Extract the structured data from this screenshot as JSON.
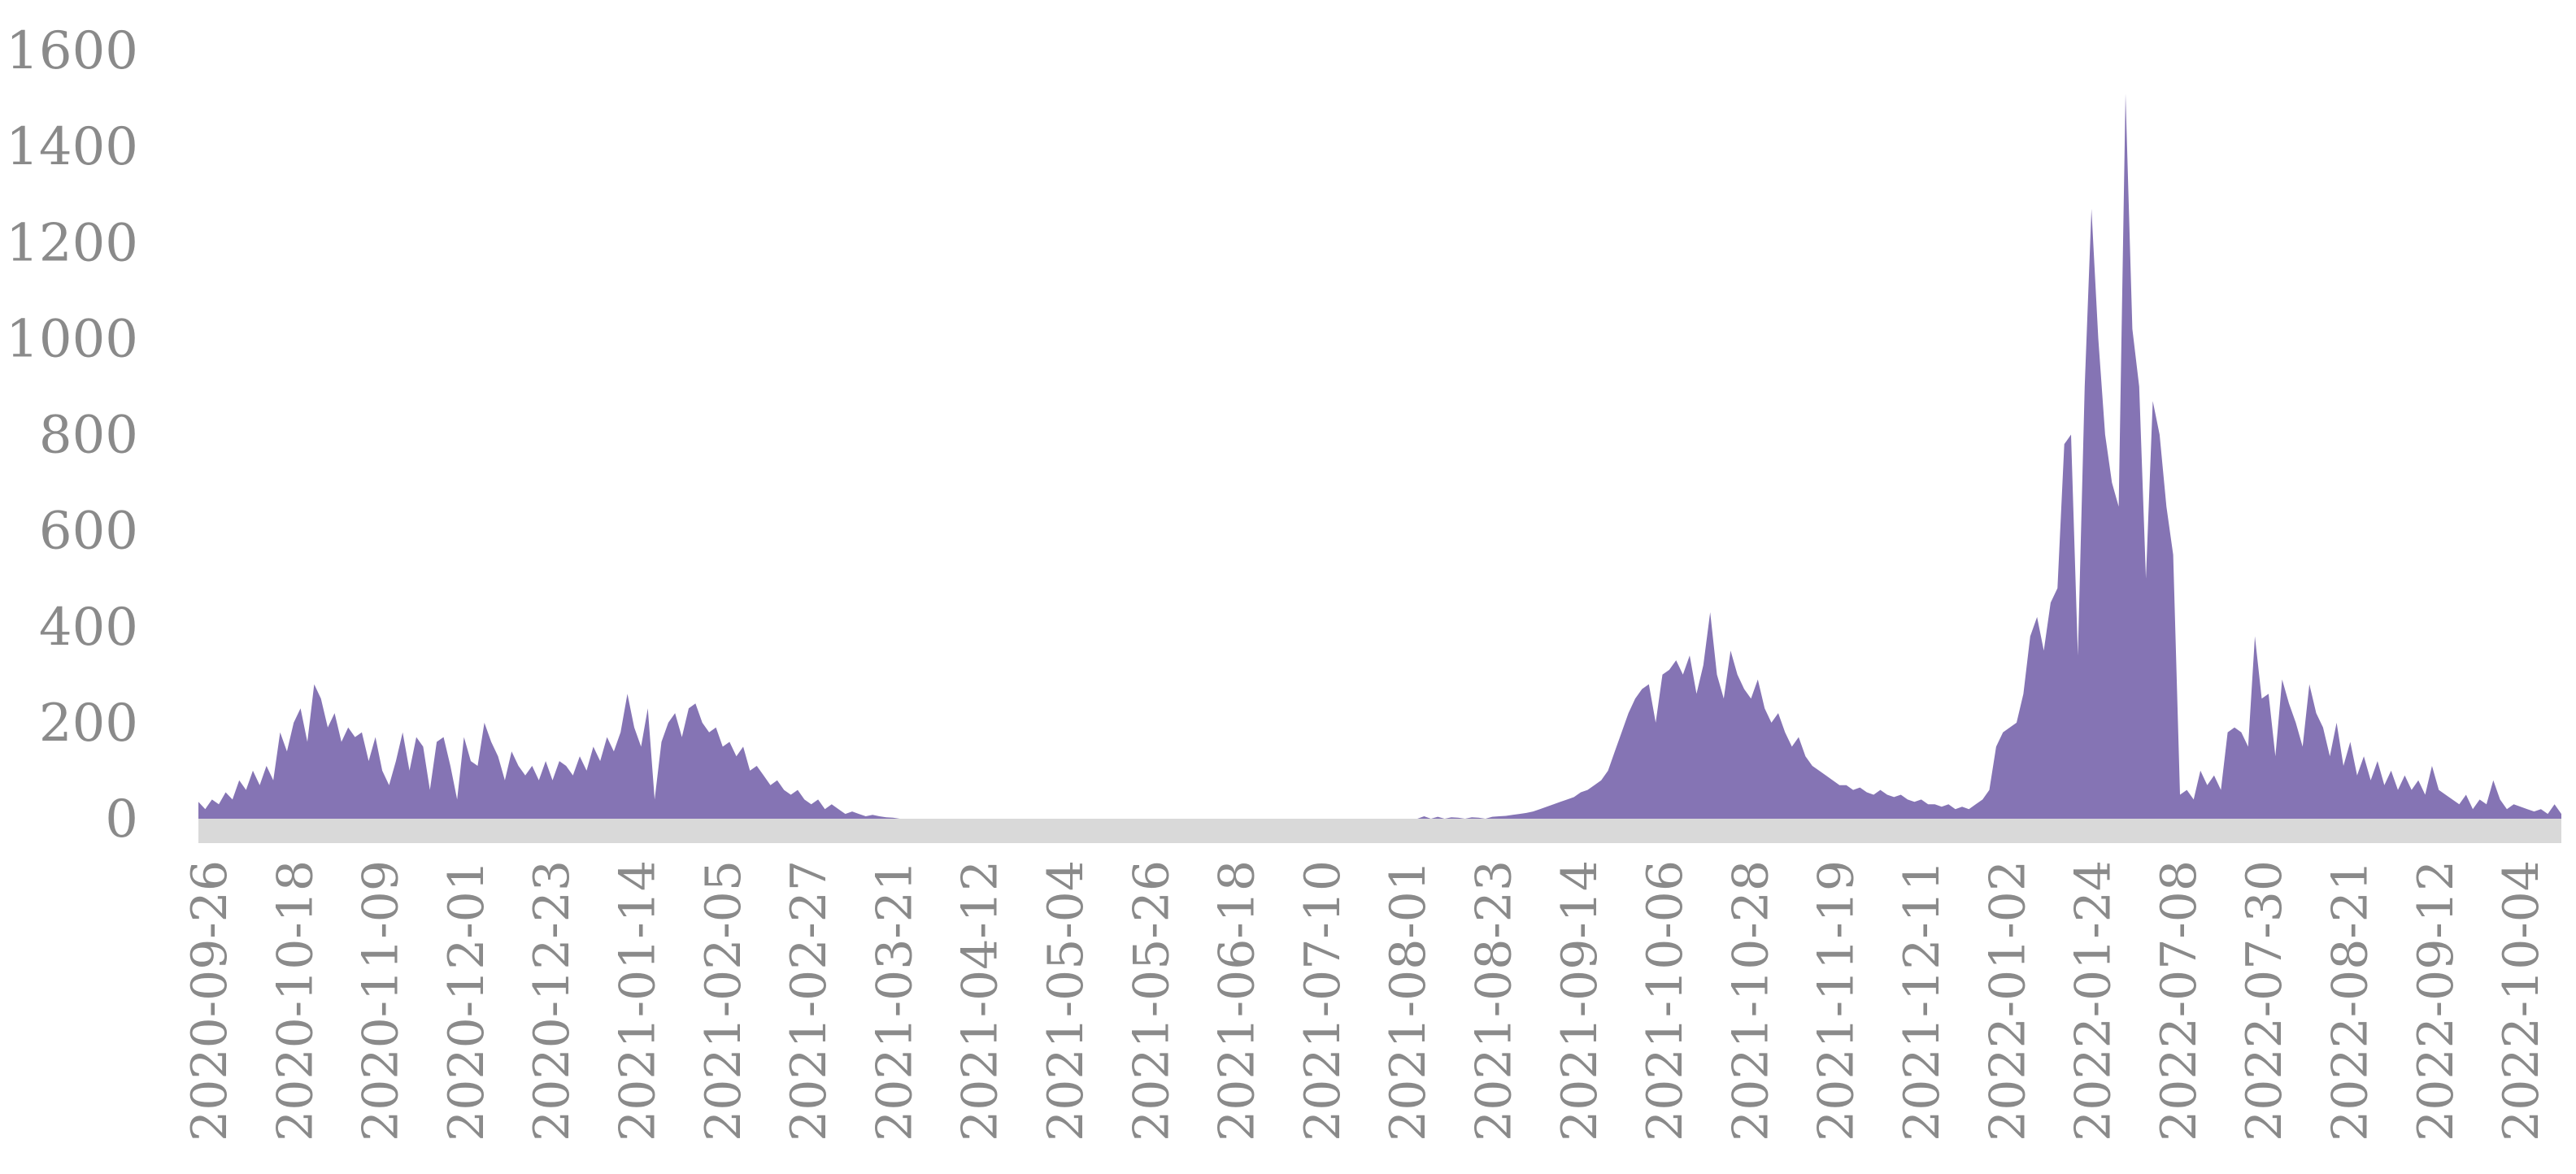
{
  "chart_data": {
    "type": "area",
    "title": "",
    "xlabel": "",
    "ylabel": "",
    "ylim": [
      0,
      1600
    ],
    "y_ticks": [
      "0",
      "200",
      "400",
      "600",
      "800",
      "1000",
      "1200",
      "1400",
      "1600"
    ],
    "x_tick_labels": [
      "2020-09-26",
      "2020-10-18",
      "2020-11-09",
      "2020-12-01",
      "2020-12-23",
      "2021-01-14",
      "2021-02-05",
      "2021-02-27",
      "2021-03-21",
      "2021-04-12",
      "2021-05-04",
      "2021-05-26",
      "2021-06-18",
      "2021-07-10",
      "2021-08-01",
      "2021-08-23",
      "2021-09-14",
      "2021-10-06",
      "2021-10-28",
      "2021-11-19",
      "2021-12-11",
      "2022-01-02",
      "2022-01-24",
      "2022-07-08",
      "2022-07-30",
      "2022-08-21",
      "2022-09-12",
      "2022-10-04"
    ],
    "grid": false,
    "legend": "none",
    "fill_color": "#8574b4",
    "baseline_band_color": "#d9d9d9",
    "tick_color": "#8a8a8a",
    "series": [
      {
        "values": [
          35,
          20,
          40,
          30,
          55,
          40,
          80,
          60,
          100,
          70,
          110,
          80,
          180,
          140,
          200,
          230,
          160,
          280,
          250,
          190,
          220,
          160,
          190,
          170,
          180,
          120,
          170,
          100,
          70,
          120,
          180,
          100,
          170,
          150,
          60,
          160,
          170,
          110,
          40,
          170,
          120,
          110,
          200,
          160,
          130,
          80,
          140,
          110,
          90,
          110,
          80,
          120,
          80,
          120,
          110,
          90,
          130,
          100,
          150,
          120,
          170,
          140,
          180,
          260,
          190,
          150,
          230,
          40,
          160,
          200,
          220,
          170,
          230,
          240,
          200,
          180,
          190,
          150,
          160,
          130,
          150,
          100,
          110,
          90,
          70,
          80,
          60,
          50,
          60,
          40,
          30,
          40,
          20,
          30,
          20,
          10,
          15,
          10,
          5,
          8,
          5,
          3,
          2,
          0,
          0,
          0,
          0,
          0,
          0,
          0,
          0,
          0,
          0,
          0,
          0,
          0,
          0,
          0,
          0,
          0,
          0,
          0,
          0,
          0,
          0,
          0,
          0,
          0,
          0,
          0,
          0,
          0,
          0,
          0,
          0,
          0,
          0,
          0,
          0,
          0,
          0,
          0,
          0,
          0,
          0,
          0,
          0,
          0,
          0,
          0,
          0,
          0,
          0,
          0,
          0,
          0,
          0,
          0,
          0,
          0,
          0,
          0,
          0,
          0,
          0,
          0,
          0,
          0,
          0,
          0,
          0,
          0,
          0,
          0,
          0,
          0,
          0,
          0,
          0,
          0,
          5,
          0,
          4,
          0,
          3,
          2,
          0,
          3,
          2,
          0,
          4,
          5,
          6,
          8,
          10,
          12,
          15,
          20,
          25,
          30,
          35,
          40,
          45,
          55,
          60,
          70,
          80,
          100,
          140,
          180,
          220,
          250,
          270,
          280,
          200,
          300,
          310,
          330,
          300,
          340,
          260,
          320,
          430,
          300,
          250,
          350,
          300,
          270,
          250,
          290,
          230,
          200,
          220,
          180,
          150,
          170,
          130,
          110,
          100,
          90,
          80,
          70,
          70,
          60,
          65,
          55,
          50,
          60,
          50,
          45,
          50,
          40,
          35,
          40,
          30,
          30,
          25,
          30,
          20,
          25,
          20,
          30,
          40,
          60,
          150,
          180,
          190,
          200,
          260,
          380,
          420,
          350,
          450,
          480,
          780,
          800,
          340,
          900,
          1270,
          1000,
          800,
          700,
          650,
          1510,
          1020,
          900,
          500,
          870,
          800,
          650,
          550,
          50,
          60,
          40,
          100,
          70,
          90,
          60,
          180,
          190,
          180,
          150,
          380,
          250,
          260,
          130,
          290,
          240,
          200,
          150,
          280,
          220,
          190,
          130,
          200,
          110,
          160,
          90,
          130,
          80,
          120,
          70,
          100,
          60,
          90,
          60,
          80,
          50,
          110,
          60,
          50,
          40,
          30,
          50,
          20,
          40,
          30,
          80,
          40,
          20,
          30,
          25,
          20,
          15,
          20,
          10,
          30,
          10
        ]
      }
    ]
  }
}
